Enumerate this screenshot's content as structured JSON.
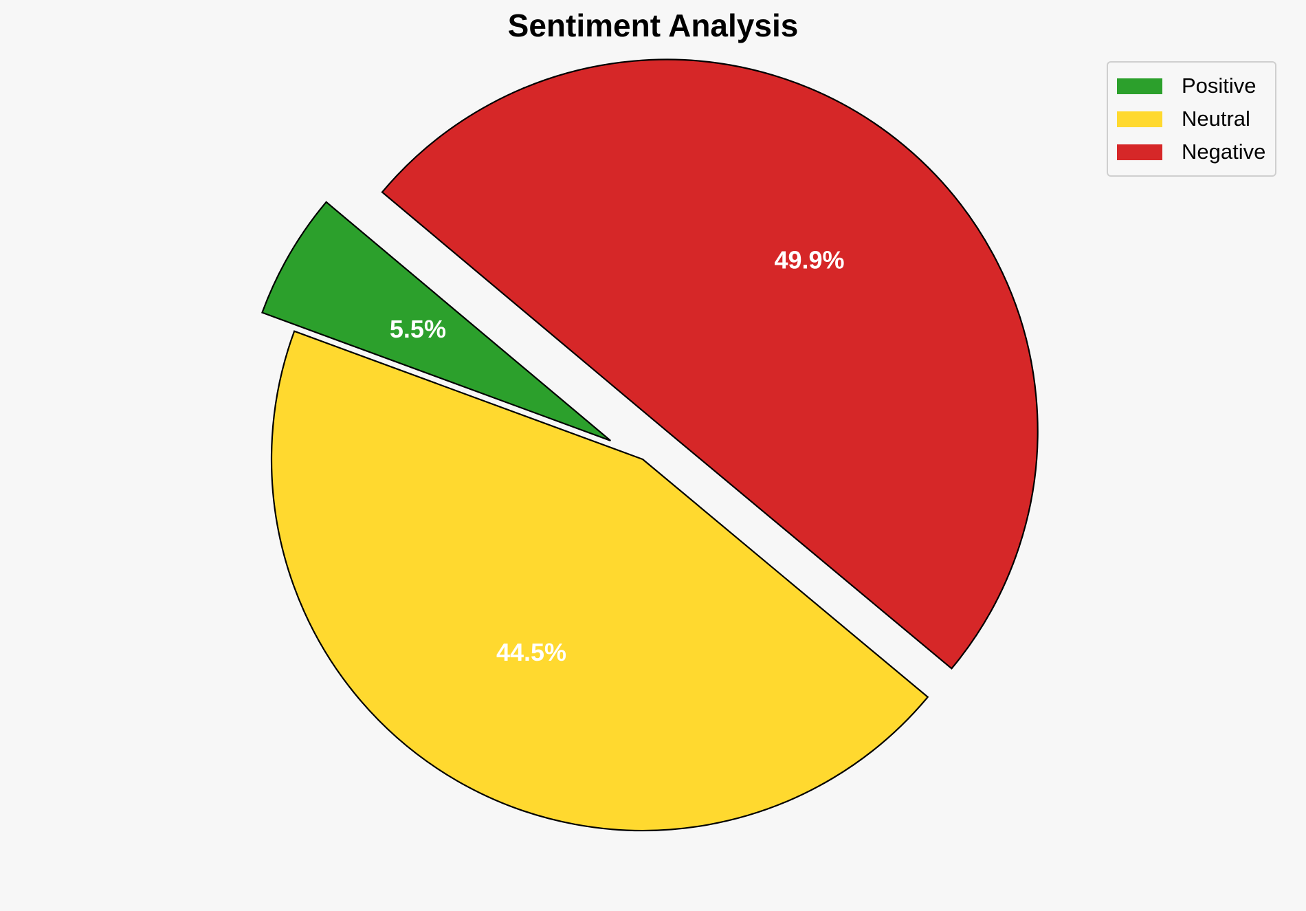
{
  "chart_data": {
    "type": "pie",
    "title": "Sentiment Analysis",
    "slices": [
      {
        "name": "Positive",
        "value": 5.5,
        "label": "5.5%",
        "color": "#2ca02c",
        "exploded": true
      },
      {
        "name": "Neutral",
        "value": 44.5,
        "label": "44.5%",
        "color": "#ffd92f",
        "exploded": false
      },
      {
        "name": "Negative",
        "value": 49.9,
        "label": "49.9%",
        "color": "#d62728",
        "exploded": true
      }
    ],
    "legend": {
      "position": "top-right",
      "entries": [
        "Positive",
        "Neutral",
        "Negative"
      ]
    }
  }
}
